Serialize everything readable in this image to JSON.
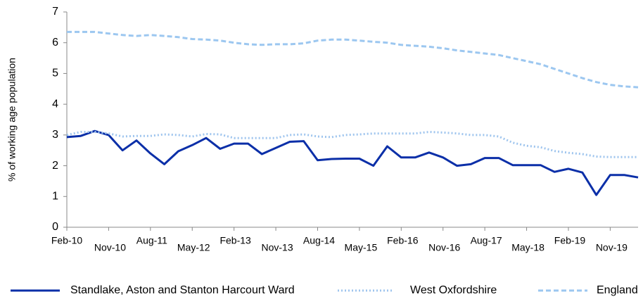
{
  "chart_data": {
    "type": "line",
    "y_label": "% of working age population",
    "categories": [
      "Feb-10",
      null,
      null,
      "Nov-10",
      null,
      null,
      "Aug-11",
      null,
      null,
      "May-12",
      null,
      null,
      "Feb-13",
      null,
      null,
      "Nov-13",
      null,
      null,
      "Aug-14",
      null,
      null,
      "May-15",
      null,
      null,
      "Feb-16",
      null,
      null,
      "Nov-16",
      null,
      null,
      "Aug-17",
      null,
      null,
      "May-18",
      null,
      null,
      "Feb-19",
      null,
      null,
      "Nov-19",
      null,
      null
    ],
    "series": [
      {
        "name": "Standlake, Aston and Stanton Harcourt Ward",
        "color": "#0b2fa8",
        "dash": "solid",
        "values": [
          2.93,
          2.97,
          3.13,
          3.0,
          2.5,
          2.82,
          2.4,
          2.05,
          2.47,
          2.67,
          2.9,
          2.55,
          2.72,
          2.72,
          2.38,
          2.58,
          2.78,
          2.8,
          2.18,
          2.22,
          2.23,
          2.23,
          2.0,
          2.63,
          2.27,
          2.27,
          2.43,
          2.27,
          2.0,
          2.05,
          2.25,
          2.25,
          2.02,
          2.02,
          2.02,
          1.8,
          1.9,
          1.78,
          1.05,
          1.7,
          1.7,
          1.62
        ]
      },
      {
        "name": "West Oxfordshire",
        "color": "#9fc5ee",
        "dash": "dotted",
        "values": [
          3.0,
          3.1,
          3.1,
          3.05,
          2.95,
          2.97,
          2.97,
          3.02,
          3.0,
          2.95,
          3.03,
          3.02,
          2.9,
          2.9,
          2.9,
          2.9,
          3.0,
          3.02,
          2.95,
          2.93,
          3.0,
          3.02,
          3.05,
          3.05,
          3.05,
          3.05,
          3.1,
          3.08,
          3.05,
          3.0,
          3.0,
          2.95,
          2.75,
          2.65,
          2.6,
          2.48,
          2.42,
          2.38,
          2.3,
          2.28,
          2.28,
          2.28
        ]
      },
      {
        "name": "England",
        "color": "#9cc7f0",
        "dash": "dashed",
        "values": [
          6.35,
          6.35,
          6.35,
          6.3,
          6.25,
          6.22,
          6.25,
          6.22,
          6.18,
          6.12,
          6.1,
          6.07,
          6.0,
          5.95,
          5.93,
          5.95,
          5.95,
          5.98,
          6.07,
          6.1,
          6.1,
          6.07,
          6.03,
          6.0,
          5.93,
          5.9,
          5.87,
          5.82,
          5.75,
          5.7,
          5.65,
          5.6,
          5.5,
          5.4,
          5.3,
          5.15,
          5.0,
          4.85,
          4.72,
          4.63,
          4.58,
          4.55
        ]
      }
    ],
    "ylim": [
      0,
      7
    ],
    "yticks": [
      0,
      1,
      2,
      3,
      4,
      5,
      6,
      7
    ],
    "grid": false,
    "legend": "bottom"
  }
}
